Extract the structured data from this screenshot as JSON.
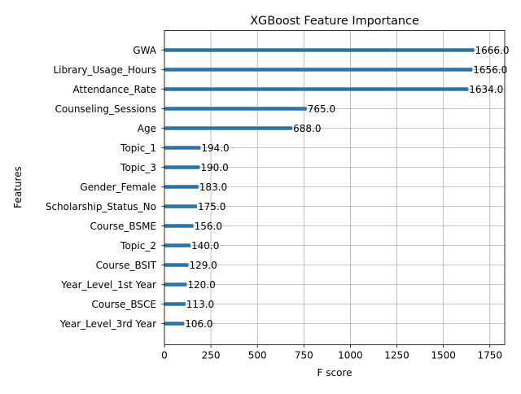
{
  "chart_data": {
    "type": "bar",
    "orientation": "horizontal",
    "title": "XGBoost Feature Importance",
    "xlabel": "F score",
    "ylabel": "Features",
    "xlim": [
      0,
      1830
    ],
    "xticks": [
      0,
      250,
      500,
      750,
      1000,
      1250,
      1500,
      1750
    ],
    "xtick_labels": [
      "0",
      "250",
      "500",
      "750",
      "1000",
      "1250",
      "1500",
      "1750"
    ],
    "grid": true,
    "bar_color": "#1f77b4",
    "categories": [
      "GWA",
      "Library_Usage_Hours",
      "Attendance_Rate",
      "Counseling_Sessions",
      "Age",
      "Topic_1",
      "Topic_3",
      "Gender_Female",
      "Scholarship_Status_No",
      "Course_BSME",
      "Topic_2",
      "Course_BSIT",
      "Year_Level_1st Year",
      "Course_BSCE",
      "Year_Level_3rd Year"
    ],
    "values": [
      1666,
      1656,
      1634,
      765,
      688,
      194,
      190,
      183,
      175,
      156,
      140,
      129,
      120,
      113,
      106
    ],
    "value_labels": [
      "1666.0",
      "1656.0",
      "1634.0",
      "765.0",
      "688.0",
      "194.0",
      "190.0",
      "183.0",
      "175.0",
      "156.0",
      "140.0",
      "129.0",
      "120.0",
      "113.0",
      "106.0"
    ]
  }
}
